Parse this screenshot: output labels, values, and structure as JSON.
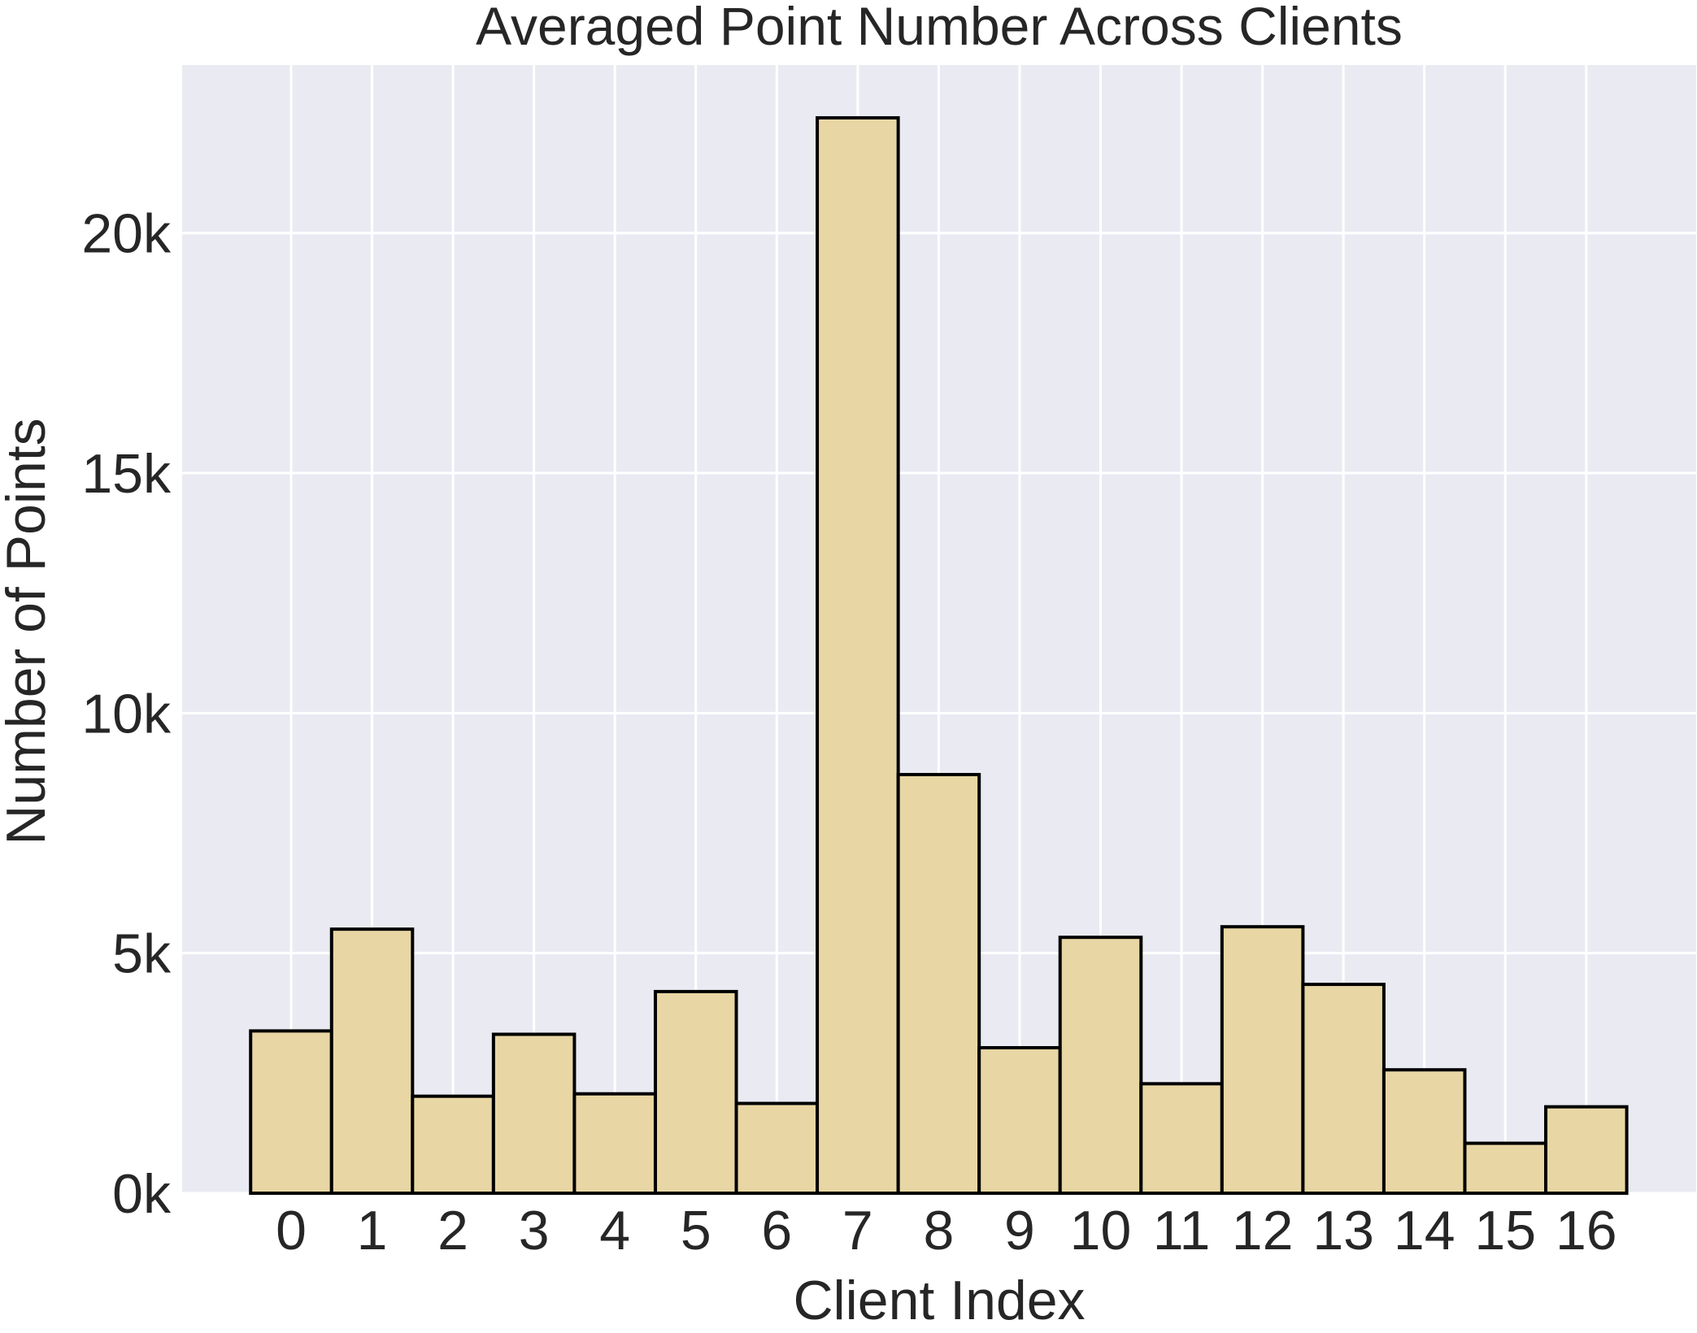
{
  "chart_data": {
    "type": "bar",
    "title": "Averaged Point Number Across Clients",
    "xlabel": "Client Index",
    "ylabel": "Number of Points",
    "categories": [
      "0",
      "1",
      "2",
      "3",
      "4",
      "5",
      "6",
      "7",
      "8",
      "9",
      "10",
      "11",
      "12",
      "13",
      "14",
      "15",
      "16"
    ],
    "values": [
      3380,
      5500,
      2020,
      3310,
      2070,
      4200,
      1870,
      22400,
      8720,
      3030,
      5330,
      2280,
      5550,
      4350,
      2570,
      1040,
      1800
    ],
    "ylim": [
      0,
      23500
    ],
    "yticks": [
      0,
      5000,
      10000,
      15000,
      20000
    ],
    "ytick_labels": [
      "0k",
      "5k",
      "10k",
      "15k",
      "20k"
    ],
    "grid": true,
    "colors": {
      "background": "#eaeaf2",
      "bar_fill": "#e8d7a4",
      "bar_edge": "#000000",
      "grid": "#ffffff",
      "text": "#262626"
    }
  }
}
